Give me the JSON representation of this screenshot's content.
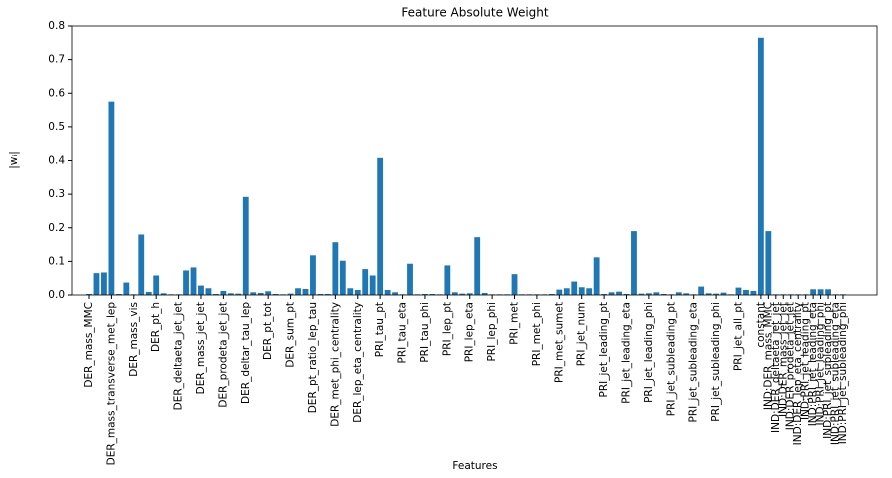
{
  "chart_data": {
    "type": "bar",
    "title": "Feature Absolute Weight",
    "x_label": "Features",
    "y_label": "|wᵢ|",
    "categories": [
      "DER_mass_MMC",
      null,
      null,
      "DER_mass_transverse_met_lep",
      null,
      null,
      "DER_mass_vis",
      null,
      null,
      "DER_pt_h",
      null,
      null,
      "DER_deltaeta_jet_jet",
      null,
      null,
      "DER_mass_jet_jet",
      null,
      null,
      "DER_prodeta_jet_jet",
      null,
      null,
      "DER_deltar_tau_lep",
      null,
      null,
      "DER_pt_tot",
      null,
      null,
      "DER_sum_pt",
      null,
      null,
      "DER_pt_ratio_lep_tau",
      null,
      null,
      "DER_met_phi_centrality",
      null,
      null,
      "DER_lep_eta_centrality",
      null,
      null,
      "PRI_tau_pt",
      null,
      null,
      "PRI_tau_eta",
      null,
      null,
      "PRI_tau_phi",
      null,
      null,
      "PRI_lep_pt",
      null,
      null,
      "PRI_lep_eta",
      null,
      null,
      "PRI_lep_phi",
      null,
      null,
      "PRI_met",
      null,
      null,
      "PRI_met_phi",
      null,
      null,
      "PRI_met_sumet",
      null,
      null,
      "PRI_jet_num",
      null,
      null,
      "PRI_jet_leading_pt",
      null,
      null,
      "PRI_jet_leading_eta",
      null,
      null,
      "PRI_jet_leading_phi",
      null,
      null,
      "PRI_jet_subleading_pt",
      null,
      null,
      "PRI_jet_subleading_eta",
      null,
      null,
      "PRI_jet_subleading_phi",
      null,
      null,
      "PRI_jet_all_pt",
      null,
      null,
      "constant",
      "IND:DER_mass_MMC",
      "IND:DER_deltaeta_jet_jet",
      "IND:DER_mass_jet_jet",
      "IND:DER_prodeta_jet_jet",
      "IND:DER_lep_eta_centrality",
      "IND:PRI_jet_leading_pt",
      "IND:PRI_jet_leading_eta",
      "IND:PRI_jet_leading_phi",
      "IND:PRI_jet_subleading_pt",
      "IND:PRI_jet_subleading_eta",
      "IND:PRI_jet_subleading_phi"
    ],
    "values": [
      0.003,
      0.065,
      0.067,
      0.575,
      0.003,
      0.037,
      0.002,
      0.18,
      0.009,
      0.058,
      0.005,
      0.002,
      0.002,
      0.073,
      0.082,
      0.028,
      0.02,
      0.003,
      0.012,
      0.005,
      0.004,
      0.292,
      0.008,
      0.006,
      0.011,
      0.003,
      0.002,
      0.004,
      0.02,
      0.018,
      0.118,
      0.003,
      0.003,
      0.157,
      0.102,
      0.02,
      0.015,
      0.077,
      0.058,
      0.408,
      0.015,
      0.008,
      0.002,
      0.093,
      0.002,
      0.003,
      0.003,
      0.002,
      0.088,
      0.008,
      0.004,
      0.005,
      0.172,
      0.006,
      0.002,
      0.002,
      0.002,
      0.062,
      0.002,
      0.002,
      0.002,
      0.002,
      0.003,
      0.016,
      0.02,
      0.04,
      0.023,
      0.02,
      0.112,
      0.003,
      0.008,
      0.01,
      0.003,
      0.19,
      0.004,
      0.005,
      0.008,
      0.003,
      0.002,
      0.008,
      0.005,
      0.002,
      0.025,
      0.005,
      0.004,
      0.007,
      0.002,
      0.022,
      0.015,
      0.012,
      0.765,
      0.19,
      0.002,
      0.002,
      0.002,
      0.002,
      0.002,
      0.017,
      0.017,
      0.017,
      0.002,
      0.002
    ],
    "color": "#1f77b4",
    "ylim": [
      0,
      0.8
    ],
    "yticks": [
      {
        "value": 0,
        "label": "0.0"
      },
      0.1,
      0.2,
      0.3,
      0.4,
      0.5,
      0.6,
      0.7,
      0.8
    ]
  }
}
